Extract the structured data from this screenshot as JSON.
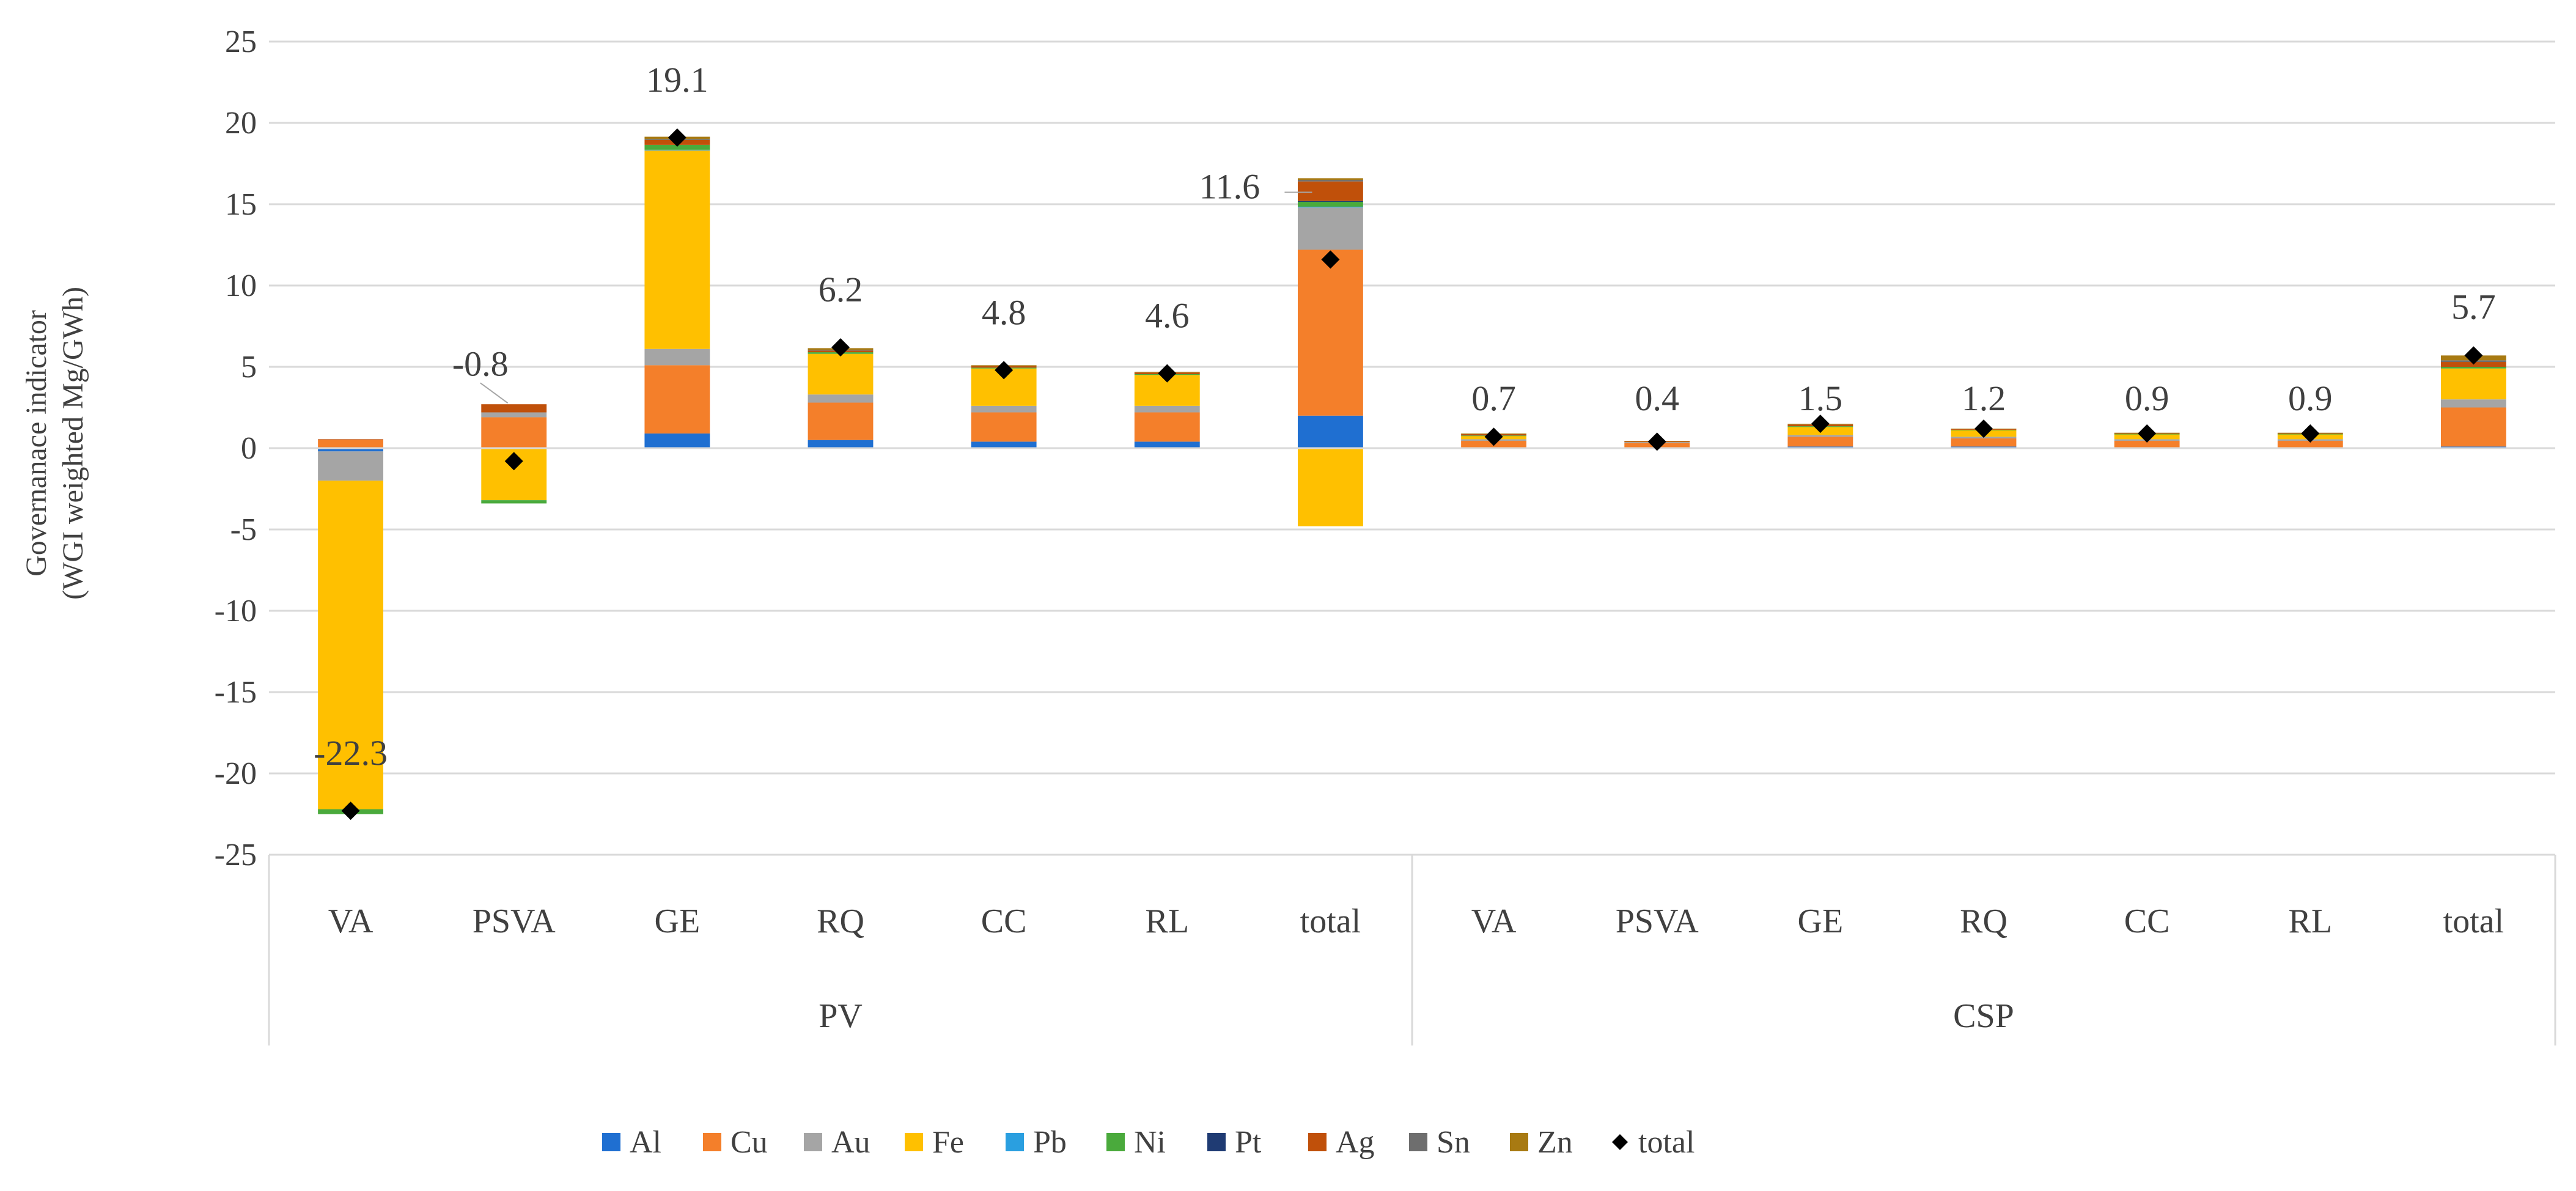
{
  "chart_data": {
    "type": "bar",
    "stacked": true,
    "ylabel_lines": [
      "Governanace indicator",
      "(WGI weighted Mg/GWh)"
    ],
    "ylim": [
      -25,
      25
    ],
    "yticks": [
      -25,
      -20,
      -15,
      -10,
      -5,
      0,
      5,
      10,
      15,
      20,
      25
    ],
    "groups": [
      {
        "name": "PV",
        "categories": [
          "VA",
          "PSVA",
          "GE",
          "RQ",
          "CC",
          "RL",
          "total"
        ]
      },
      {
        "name": "CSP",
        "categories": [
          "VA",
          "PSVA",
          "GE",
          "RQ",
          "CC",
          "RL",
          "total"
        ]
      }
    ],
    "series": [
      {
        "name": "Al",
        "color": "#1f6fd1",
        "values": [
          -0.2,
          0.0,
          0.9,
          0.5,
          0.4,
          0.4,
          2.0,
          0.05,
          0.03,
          0.1,
          0.1,
          0.05,
          0.05,
          0.1
        ]
      },
      {
        "name": "Cu",
        "color": "#f47f2a",
        "values": [
          0.5,
          1.9,
          4.2,
          2.3,
          1.8,
          1.8,
          10.2,
          0.4,
          0.3,
          0.6,
          0.5,
          0.4,
          0.4,
          2.4
        ]
      },
      {
        "name": "Au",
        "color": "#a5a5a5",
        "values": [
          -1.8,
          0.3,
          1.0,
          0.5,
          0.4,
          0.4,
          2.6,
          0.1,
          0.05,
          0.1,
          0.1,
          0.1,
          0.1,
          0.5
        ]
      },
      {
        "name": "Fe",
        "color": "#ffc000",
        "values": [
          -20.2,
          -3.2,
          12.2,
          2.5,
          2.3,
          1.9,
          -4.8,
          0.2,
          0.0,
          0.5,
          0.4,
          0.3,
          0.3,
          1.9
        ]
      },
      {
        "name": "Pb",
        "color": "#2a9fe0",
        "values": [
          0.0,
          0.0,
          0.05,
          0.0,
          0.0,
          0.0,
          0.05,
          0.0,
          0.0,
          0.0,
          0.0,
          0.0,
          0.0,
          0.0
        ]
      },
      {
        "name": "Ni",
        "color": "#4aaa3c",
        "values": [
          -0.3,
          -0.2,
          0.3,
          0.1,
          0.05,
          0.05,
          0.3,
          0.03,
          0.0,
          0.05,
          0.03,
          0.03,
          0.03,
          0.1
        ]
      },
      {
        "name": "Pt",
        "color": "#1f3b73",
        "values": [
          0.0,
          0.0,
          0.0,
          0.0,
          0.0,
          0.0,
          0.05,
          0.0,
          0.0,
          0.0,
          0.0,
          0.0,
          0.0,
          0.0
        ]
      },
      {
        "name": "Ag",
        "color": "#c0500a",
        "values": [
          0.05,
          0.5,
          0.3,
          0.1,
          0.1,
          0.1,
          1.2,
          0.1,
          0.05,
          0.1,
          0.05,
          0.05,
          0.05,
          0.3
        ]
      },
      {
        "name": "Sn",
        "color": "#6e6e6e",
        "values": [
          0.0,
          0.0,
          0.05,
          0.05,
          0.0,
          0.0,
          0.1,
          0.0,
          0.0,
          0.0,
          0.0,
          0.0,
          0.0,
          0.1
        ]
      },
      {
        "name": "Zn",
        "color": "#a87a12",
        "values": [
          0.0,
          0.0,
          0.15,
          0.1,
          0.05,
          0.05,
          0.1,
          0.02,
          0.02,
          0.05,
          0.02,
          0.02,
          0.02,
          0.3
        ]
      }
    ],
    "totals": {
      "name": "total",
      "marker_color": "#000000",
      "values": [
        -22.3,
        -0.8,
        19.1,
        6.2,
        4.8,
        4.6,
        11.6,
        0.7,
        0.4,
        1.5,
        1.2,
        0.9,
        0.9,
        5.7
      ],
      "labels": [
        "-22.3",
        "-0.8",
        "19.1",
        "6.2",
        "4.8",
        "4.6",
        "11.6",
        "0.7",
        "0.4",
        "1.5",
        "1.2",
        "0.9",
        "0.9",
        "5.7"
      ]
    },
    "legend_position": "bottom",
    "grid": true
  }
}
